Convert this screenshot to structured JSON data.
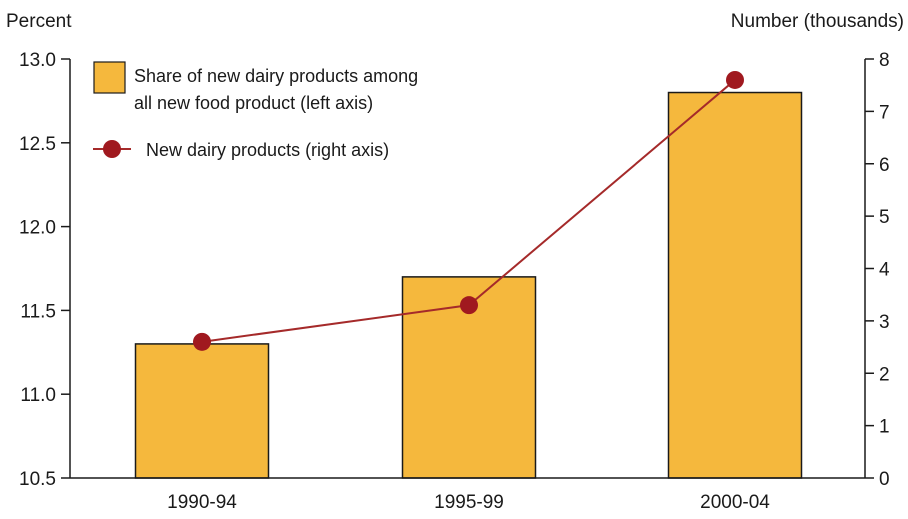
{
  "chart_data": {
    "type": "bar",
    "categories": [
      "1990-94",
      "1995-99",
      "2000-04"
    ],
    "series": [
      {
        "name": "Share of new dairy products among all new food product (left axis)",
        "type": "bar",
        "axis": "left",
        "values": [
          11.3,
          11.7,
          12.8
        ]
      },
      {
        "name": "New dairy products (right axis)",
        "type": "line",
        "axis": "right",
        "values": [
          2.6,
          3.3,
          7.6
        ]
      }
    ],
    "ylabel_left": "Percent",
    "ylabel_right": "Number (thousands)",
    "ylim_left": [
      10.5,
      13.0
    ],
    "ylim_right": [
      0,
      8
    ],
    "yticks_left": [
      "10.5",
      "11.0",
      "11.5",
      "12.0",
      "12.5",
      "13.0"
    ],
    "yticks_right": [
      "0",
      "1",
      "2",
      "3",
      "4",
      "5",
      "6",
      "7",
      "8"
    ],
    "legend": {
      "bar_line1": "Share of new dairy products among",
      "bar_line2": "all new food product (left axis)",
      "line_label": "New dairy products (right axis)",
      "placement": "top-left"
    },
    "grid": false,
    "colors": {
      "bar_fill": "#F5B83D",
      "bar_stroke": "#1a1a1a",
      "line": "#A52A2A",
      "marker": "#A0191F"
    }
  }
}
